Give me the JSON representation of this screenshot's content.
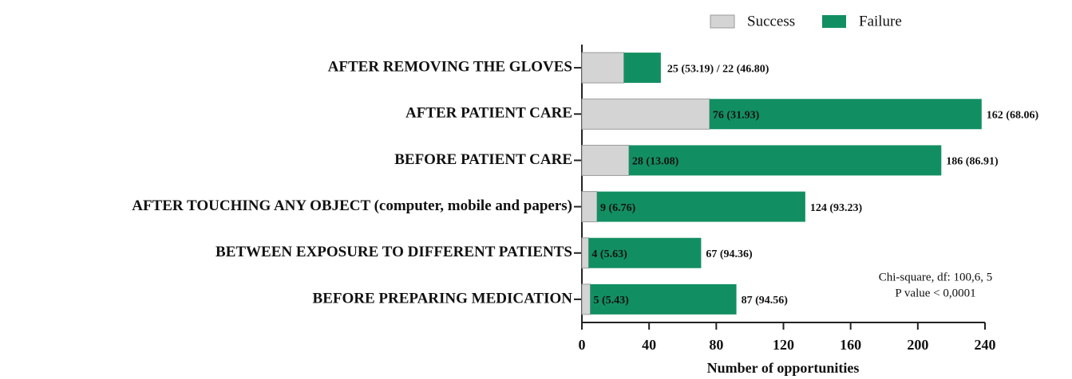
{
  "chart_data": {
    "type": "stacked-bar-horizontal",
    "categories": [
      "AFTER REMOVING THE GLOVES",
      "AFTER PATIENT CARE",
      "BEFORE PATIENT CARE",
      "AFTER TOUCHING ANY OBJECT (computer, mobile and papers)",
      "BETWEEN EXPOSURE TO DIFFERENT PATIENTS",
      "BEFORE PREPARING MEDICATION"
    ],
    "series": [
      {
        "name": "Success",
        "color": "#d4d4d4",
        "values": [
          25,
          76,
          28,
          9,
          4,
          5
        ],
        "value_labels": [
          "25 (53.19) / 22 (46.80)",
          "76 (31.93)",
          "28 (13.08)",
          "9 (6.76)",
          "4 (5.63)",
          "5 (5.43)"
        ]
      },
      {
        "name": "Failure",
        "color": "#128f62",
        "values": [
          22,
          162,
          186,
          124,
          67,
          87
        ],
        "value_labels": [
          null,
          "162 (68.06)",
          "186 (86.91)",
          "124 (93.23)",
          "67 (94.36)",
          "87 (94.56)"
        ]
      }
    ],
    "x_label": "Number of opportunities",
    "xlim": [
      0,
      240
    ],
    "xticks": [
      0,
      40,
      80,
      120,
      160,
      200,
      240
    ],
    "annotations": [
      "Chi-square, df: 100,6, 5",
      "P value < 0,0001"
    ],
    "legend": "top-right"
  }
}
